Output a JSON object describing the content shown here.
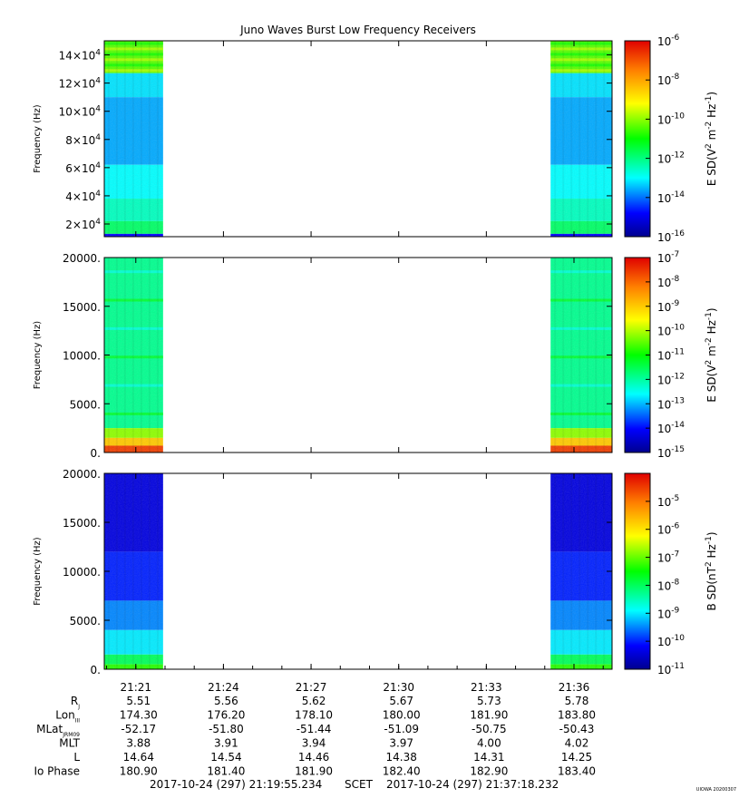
{
  "title": "Juno Waves Burst Low Frequency Receivers",
  "scet_label": "SCET",
  "time_start": "2017-10-24 (297) 21:19:55.234",
  "time_end": "2017-10-24 (297) 21:37:18.232",
  "credit": "UIOWA 20200307",
  "colors": {
    "background": "#ffffff",
    "frame": "#000000"
  },
  "chart_data": [
    {
      "type": "heatmap",
      "panel": "top",
      "ylabel": "Frequency (Hz)",
      "y_ticks": [
        {
          "value": 20000,
          "mantissa": "2×10",
          "exp": "4"
        },
        {
          "value": 40000,
          "mantissa": "4×10",
          "exp": "4"
        },
        {
          "value": 60000,
          "mantissa": "6×10",
          "exp": "4"
        },
        {
          "value": 80000,
          "mantissa": "8×10",
          "exp": "4"
        },
        {
          "value": 100000,
          "mantissa": "10×10",
          "exp": "4"
        },
        {
          "value": 120000,
          "mantissa": "12×10",
          "exp": "4"
        },
        {
          "value": 140000,
          "mantissa": "14×10",
          "exp": "4"
        }
      ],
      "ylim": [
        11000,
        150000
      ],
      "colorbar": {
        "label_base": "E SD(V",
        "label_exp1": "2",
        "label_mid": " m",
        "label_exp2": "-2",
        "label_mid2": " Hz",
        "label_exp3": "-1",
        "label_end": ")",
        "log_range": [
          -16,
          -6
        ],
        "ticks": [
          {
            "exp": "-6",
            "value": -6
          },
          {
            "exp": "-8",
            "value": -8
          },
          {
            "exp": "-10",
            "value": -10
          },
          {
            "exp": "-12",
            "value": -12
          },
          {
            "exp": "-14",
            "value": -14
          },
          {
            "exp": "-16",
            "value": -16
          }
        ]
      },
      "data_blocks": [
        [
          "21:19:55",
          "21:21:56"
        ],
        [
          "21:35:12",
          "21:37:18"
        ]
      ],
      "bands": [
        {
          "y0": 127000,
          "y1": 150000,
          "log_value": -10.4,
          "striated": true
        },
        {
          "y0": 110000,
          "y1": 127000,
          "log_value": -13.2
        },
        {
          "y0": 62000,
          "y1": 110000,
          "log_value": -13.6
        },
        {
          "y0": 38000,
          "y1": 62000,
          "log_value": -13.0
        },
        {
          "y0": 22000,
          "y1": 38000,
          "log_value": -12.5
        },
        {
          "y0": 13000,
          "y1": 22000,
          "log_value": -11.8
        },
        {
          "y0": 11000,
          "y1": 13000,
          "log_value": -14.8
        }
      ]
    },
    {
      "type": "heatmap",
      "panel": "middle",
      "ylabel": "Frequency (Hz)",
      "y_ticks": [
        {
          "value": 0,
          "label": "0."
        },
        {
          "value": 5000,
          "label": "5000."
        },
        {
          "value": 10000,
          "label": "10000."
        },
        {
          "value": 15000,
          "label": "15000."
        },
        {
          "value": 20000,
          "label": "20000."
        }
      ],
      "ylim": [
        0,
        20000
      ],
      "colorbar": {
        "label_base": "E SD(V",
        "label_exp1": "2",
        "label_mid": " m",
        "label_exp2": "-2",
        "label_mid2": " Hz",
        "label_exp3": "-1",
        "label_end": ")",
        "log_range": [
          -15,
          -7
        ],
        "ticks": [
          {
            "exp": "-7",
            "value": -7
          },
          {
            "exp": "-8",
            "value": -8
          },
          {
            "exp": "-9",
            "value": -9
          },
          {
            "exp": "-10",
            "value": -10
          },
          {
            "exp": "-11",
            "value": -11
          },
          {
            "exp": "-12",
            "value": -12
          },
          {
            "exp": "-13",
            "value": -13
          },
          {
            "exp": "-14",
            "value": -14
          },
          {
            "exp": "-15",
            "value": -15
          }
        ]
      },
      "data_blocks": [
        [
          "21:19:55",
          "21:21:56"
        ],
        [
          "21:35:12",
          "21:37:18"
        ]
      ],
      "bands": [
        {
          "y0": 2500,
          "y1": 20000,
          "log_value": -11.9,
          "striated": true
        },
        {
          "y0": 1500,
          "y1": 2500,
          "log_value": -10.2
        },
        {
          "y0": 700,
          "y1": 1500,
          "log_value": -9.0
        },
        {
          "y0": 0,
          "y1": 700,
          "log_value": -7.6
        }
      ]
    },
    {
      "type": "heatmap",
      "panel": "bottom",
      "ylabel": "Frequency (Hz)",
      "y_ticks": [
        {
          "value": 0,
          "label": "0."
        },
        {
          "value": 5000,
          "label": "5000."
        },
        {
          "value": 10000,
          "label": "10000."
        },
        {
          "value": 15000,
          "label": "15000."
        },
        {
          "value": 20000,
          "label": "20000."
        }
      ],
      "ylim": [
        0,
        20000
      ],
      "colorbar": {
        "label_base": "B SD(nT",
        "label_exp1": "2",
        "label_mid": " Hz",
        "label_exp2": "-1",
        "label_mid2": "",
        "label_exp3": "",
        "label_end": ")",
        "log_range": [
          -11,
          -4
        ],
        "ticks": [
          {
            "exp": "-5",
            "value": -5
          },
          {
            "exp": "-6",
            "value": -6
          },
          {
            "exp": "-7",
            "value": -7
          },
          {
            "exp": "-8",
            "value": -8
          },
          {
            "exp": "-9",
            "value": -9
          },
          {
            "exp": "-10",
            "value": -10
          },
          {
            "exp": "-11",
            "value": -11
          }
        ]
      },
      "data_blocks": [
        [
          "21:19:55",
          "21:21:56"
        ],
        [
          "21:35:12",
          "21:37:18"
        ]
      ],
      "bands": [
        {
          "y0": 12000,
          "y1": 20000,
          "log_value": -10.4
        },
        {
          "y0": 7000,
          "y1": 12000,
          "log_value": -10.0
        },
        {
          "y0": 4000,
          "y1": 7000,
          "log_value": -9.5
        },
        {
          "y0": 1500,
          "y1": 4000,
          "log_value": -9.0
        },
        {
          "y0": 500,
          "y1": 1500,
          "log_value": -8.0
        },
        {
          "y0": 0,
          "y1": 500,
          "log_value": -7.3
        }
      ]
    }
  ],
  "x_axis": {
    "start": "21:19:55.234",
    "end": "21:37:18.232",
    "ticks": [
      "21:21",
      "21:24",
      "21:27",
      "21:30",
      "21:33",
      "21:36"
    ]
  },
  "ephemeris": {
    "rows": [
      {
        "label": "R",
        "sub": "J",
        "values": [
          "5.51",
          "5.56",
          "5.62",
          "5.67",
          "5.73",
          "5.78"
        ]
      },
      {
        "label": "Lon",
        "sub": "III",
        "values": [
          "174.30",
          "176.20",
          "178.10",
          "180.00",
          "181.90",
          "183.80"
        ]
      },
      {
        "label": "MLat",
        "sub": "JRM09",
        "values": [
          "-52.17",
          "-51.80",
          "-51.44",
          "-51.09",
          "-50.75",
          "-50.43"
        ]
      },
      {
        "label": "MLT",
        "sub": "",
        "values": [
          "3.88",
          "3.91",
          "3.94",
          "3.97",
          "4.00",
          "4.02"
        ]
      },
      {
        "label": "L",
        "sub": "",
        "values": [
          "14.64",
          "14.54",
          "14.46",
          "14.38",
          "14.31",
          "14.25"
        ]
      },
      {
        "label": "Io Phase",
        "sub": "",
        "values": [
          "180.90",
          "181.40",
          "181.90",
          "182.40",
          "182.90",
          "183.40"
        ]
      }
    ]
  }
}
